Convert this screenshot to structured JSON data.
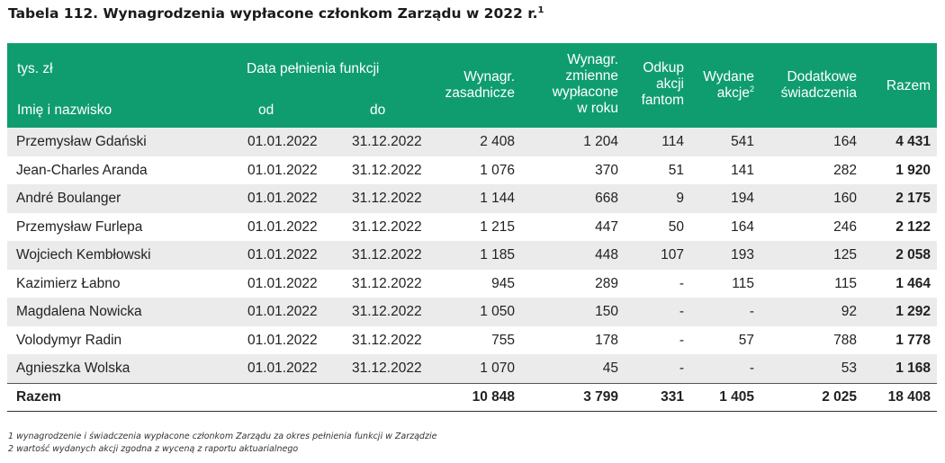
{
  "title": {
    "text": "Tabela 112. Wynagrodzenia wypłacone członkom Zarządu w 2022 r.",
    "sup": "1"
  },
  "header": {
    "unit": "tys. zł",
    "name": "Imię i nazwisko",
    "date_group": "Data pełnienia funkcji",
    "from": "od",
    "to": "do",
    "base": [
      "Wynagr.",
      "zasadnicze"
    ],
    "variable": [
      "Wynagr.",
      "zmienne",
      "wypłacone",
      "w roku"
    ],
    "phantom": [
      "Odkup",
      "akcji",
      "fantom"
    ],
    "shares": [
      "Wydane",
      "akcje"
    ],
    "shares_sup": "2",
    "benefits": [
      "Dodatkowe",
      "świadczenia"
    ],
    "total": "Razem"
  },
  "rows": [
    {
      "name": "Przemysław Gdański",
      "from": "01.01.2022",
      "to": "31.12.2022",
      "base": "2 408",
      "variable": "1 204",
      "phantom": "114",
      "shares": "541",
      "benefits": "164",
      "total": "4 431"
    },
    {
      "name": "Jean-Charles Aranda",
      "from": "01.01.2022",
      "to": "31.12.2022",
      "base": "1 076",
      "variable": "370",
      "phantom": "51",
      "shares": "141",
      "benefits": "282",
      "total": "1 920"
    },
    {
      "name": "André Boulanger",
      "from": "01.01.2022",
      "to": "31.12.2022",
      "base": "1 144",
      "variable": "668",
      "phantom": "9",
      "shares": "194",
      "benefits": "160",
      "total": "2 175"
    },
    {
      "name": "Przemysław Furlepa",
      "from": "01.01.2022",
      "to": "31.12.2022",
      "base": "1 215",
      "variable": "447",
      "phantom": "50",
      "shares": "164",
      "benefits": "246",
      "total": "2 122"
    },
    {
      "name": "Wojciech Kembłowski",
      "from": "01.01.2022",
      "to": "31.12.2022",
      "base": "1 185",
      "variable": "448",
      "phantom": "107",
      "shares": "193",
      "benefits": "125",
      "total": "2 058"
    },
    {
      "name": "Kazimierz Łabno",
      "from": "01.01.2022",
      "to": "31.12.2022",
      "base": "945",
      "variable": "289",
      "phantom": "-",
      "shares": "115",
      "benefits": "115",
      "total": "1 464"
    },
    {
      "name": "Magdalena Nowicka",
      "from": "01.01.2022",
      "to": "31.12.2022",
      "base": "1 050",
      "variable": "150",
      "phantom": "-",
      "shares": "-",
      "benefits": "92",
      "total": "1 292"
    },
    {
      "name": "Volodymyr Radin",
      "from": "01.01.2022",
      "to": "31.12.2022",
      "base": "755",
      "variable": "178",
      "phantom": "-",
      "shares": "57",
      "benefits": "788",
      "total": "1 778"
    },
    {
      "name": "Agnieszka Wolska",
      "from": "01.01.2022",
      "to": "31.12.2022",
      "base": "1 070",
      "variable": "45",
      "phantom": "-",
      "shares": "-",
      "benefits": "53",
      "total": "1 168"
    }
  ],
  "totals": {
    "label": "Razem",
    "base": "10 848",
    "variable": "3 799",
    "phantom": "331",
    "shares": "1 405",
    "benefits": "2 025",
    "total": "18 408"
  },
  "footnotes": [
    "1 wynagrodzenie i świadczenia wypłacone członkom Zarządu za okres pełnienia funkcji w Zarządzie",
    "2 wartość wydanych akcji zgodna z wyceną z raportu aktuarialnego"
  ],
  "colors": {
    "header_bg": "#0f9d6f",
    "alt_row_bg": "#ebebeb"
  }
}
